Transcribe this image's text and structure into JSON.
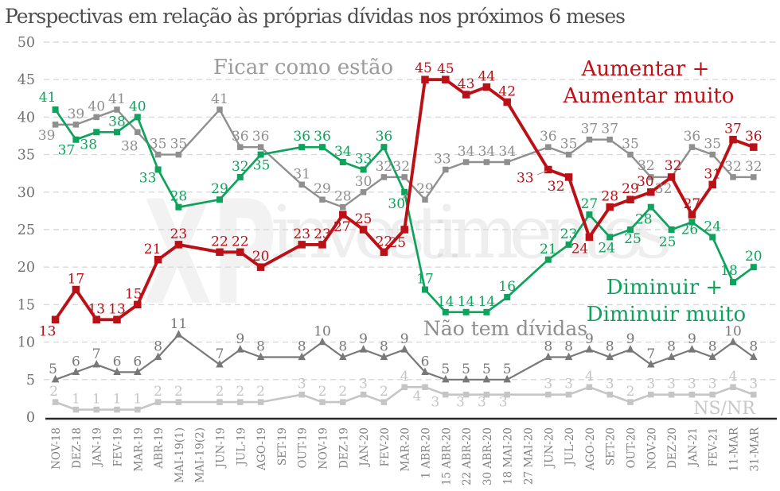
{
  "title": "Perspectivas em relação às próprias dívidas nos próximos 6 meses",
  "watermark": {
    "logo": "XP",
    "brand": "investimentos"
  },
  "annotations": {
    "ficar": "Ficar como estão",
    "aumentar_line1": "Aumentar +",
    "aumentar_line2": "Aumentar muito",
    "diminuir_line1": "Diminuir +",
    "diminuir_line2": "Diminuir muito",
    "nao_tem": "Não tem dívidas",
    "nsnr": "NS/NR"
  },
  "colors": {
    "aumentar": "#bb1016",
    "diminuir": "#0ea35c",
    "ficar": "#8f8f8f",
    "nao_tem": "#787878",
    "nsnr": "#c5c5c5",
    "ficar_annotation": "#9b9b9b",
    "nao_tem_annotation": "#8d8d8d",
    "nsnr_annotation": "#c7c7c7",
    "title": "#4e4e4e",
    "grid": "#d9d9d9",
    "axis_line": "#2a2a2a",
    "tick_labels": "#828282"
  },
  "chart_data": {
    "type": "line",
    "title": "Perspectivas em relação às próprias dívidas nos próximos 6 meses",
    "xlabel": "",
    "ylabel": "",
    "ylim": [
      0,
      50
    ],
    "y_tick_step": 5,
    "y_ticks": [
      0,
      5,
      10,
      15,
      20,
      25,
      30,
      35,
      40,
      45,
      50
    ],
    "grid": "horizontal-dashed",
    "legend_position": "inline-annotations",
    "categories": [
      "NOV-18",
      "DEZ-18",
      "JAN-19",
      "FEV-19",
      "MAR-19",
      "ABR-19",
      "MAI-19(1)",
      "MAI-19(2)",
      "JUN-19",
      "JUL-19",
      "AGO-19",
      "SET-19",
      "OUT-19",
      "NOV-19",
      "DEZ-19",
      "JAN-20",
      "FEV-20",
      "MAR-20",
      "1 ABR-20",
      "15 ABR-20",
      "22 ABR-20",
      "30 ABR-20",
      "18 MAI-20",
      "27 MAI-20",
      "JUN-20",
      "JUL-20",
      "AGO-20",
      "SET-20",
      "OUT-20",
      "NOV-20",
      "DEZ-20",
      "JAN-21",
      "FEV-21",
      "11-MAR",
      "31-MAR"
    ],
    "missing_categories": [
      "MAI-19(2)",
      "SET-19",
      "27 MAI-20"
    ],
    "series": [
      {
        "key": "nsnr",
        "name": "NS/NR",
        "color": "#c5c5c5",
        "marker": "square",
        "line_width": 2.6,
        "marker_size": 7.5,
        "values": [
          2,
          1,
          1,
          1,
          1,
          2,
          2,
          null,
          2,
          2,
          2,
          null,
          3,
          2,
          2,
          3,
          2,
          4,
          4,
          3,
          3,
          3,
          3,
          null,
          3,
          3,
          4,
          3,
          2,
          3,
          3,
          3,
          3,
          4,
          3
        ],
        "label_offsets": {
          "0": [
            -2,
            -8
          ],
          "18": [
            -10,
            17
          ],
          "19": [
            -13,
            15
          ],
          "20": [
            -7,
            15
          ],
          "21": [
            -6,
            15
          ],
          "22": [
            -5,
            15
          ]
        }
      },
      {
        "key": "nao_tem",
        "name": "Não tem dívidas",
        "color": "#787878",
        "marker": "triangle",
        "line_width": 2.2,
        "marker_size": 9.5,
        "values": [
          5,
          6,
          7,
          6,
          6,
          8,
          11,
          null,
          7,
          9,
          8,
          null,
          8,
          10,
          8,
          9,
          8,
          9,
          6,
          5,
          5,
          5,
          5,
          null,
          8,
          8,
          9,
          8,
          9,
          7,
          8,
          9,
          8,
          10,
          8
        ],
        "label_offsets": {
          "0": [
            -3,
            -8
          ]
        }
      },
      {
        "key": "ficar",
        "name": "Ficar como estão",
        "color": "#8f8f8f",
        "marker": "square",
        "line_width": 2.4,
        "marker_size": 7.5,
        "values": [
          39,
          39,
          40,
          41,
          38,
          35,
          35,
          null,
          41,
          36,
          36,
          null,
          31,
          29,
          28,
          30,
          32,
          32,
          29,
          33,
          34,
          34,
          34,
          null,
          36,
          35,
          37,
          37,
          35,
          32,
          32,
          36,
          35,
          32,
          32
        ],
        "label_offsets": {
          "0": [
            -11,
            19
          ],
          "4": [
            -10,
            23
          ],
          "17": [
            -4,
            -8
          ],
          "19": [
            -4,
            -8
          ],
          "29": [
            -6,
            -9
          ],
          "30": [
            -10,
            20
          ]
        }
      },
      {
        "key": "diminuir",
        "name": "Diminuir + Diminuir muito",
        "color": "#0ea35c",
        "marker": "square",
        "line_width": 2.7,
        "marker_size": 8,
        "values": [
          41,
          37,
          38,
          38,
          40,
          33,
          28,
          null,
          29,
          32,
          35,
          null,
          36,
          36,
          34,
          33,
          36,
          30,
          17,
          14,
          14,
          14,
          16,
          null,
          21,
          23,
          27,
          24,
          25,
          28,
          25,
          26,
          24,
          18,
          20
        ],
        "label_offsets": {
          "0": [
            -10,
            -10
          ],
          "1": [
            -12,
            19
          ],
          "2": [
            -10,
            21
          ],
          "5": [
            -13,
            16
          ],
          "10": [
            1,
            19
          ],
          "17": [
            -10,
            20
          ],
          "27": [
            -4,
            19
          ],
          "28": [
            3,
            17
          ],
          "29": [
            -9,
            21
          ],
          "30": [
            -5,
            21
          ],
          "31": [
            -3,
            15
          ],
          "33": [
            -5,
            -9
          ]
        }
      },
      {
        "key": "aumentar",
        "name": "Aumentar + Aumentar muito",
        "color": "#bb1016",
        "marker": "square",
        "line_width": 3.9,
        "marker_size": 9.5,
        "values": [
          13,
          17,
          13,
          13,
          15,
          21,
          23,
          null,
          22,
          22,
          20,
          null,
          23,
          23,
          27,
          25,
          22,
          25,
          45,
          45,
          43,
          44,
          42,
          null,
          33,
          32,
          24,
          28,
          29,
          30,
          32,
          27,
          31,
          37,
          36
        ],
        "label_offsets": {
          "0": [
            -10,
            20
          ],
          "4": [
            -5,
            -8
          ],
          "5": [
            -7,
            -8
          ],
          "14": [
            -1,
            21
          ],
          "17": [
            -9,
            22
          ],
          "18": [
            -2,
            -9
          ],
          "24": [
            -29,
            16
          ],
          "25": [
            -16,
            17
          ],
          "26": [
            -12,
            20
          ],
          "29": [
            -7,
            -8
          ],
          "30": [
            2,
            -9
          ]
        }
      }
    ],
    "leader_lines": [
      {
        "series": "aumentar",
        "index": 24,
        "from": [
          675,
          220
        ],
        "to": [
          687,
          215
        ]
      },
      {
        "series": "diminuir",
        "index": 17,
        "from": [
          505,
          252
        ],
        "to": [
          510,
          244
        ]
      }
    ]
  }
}
